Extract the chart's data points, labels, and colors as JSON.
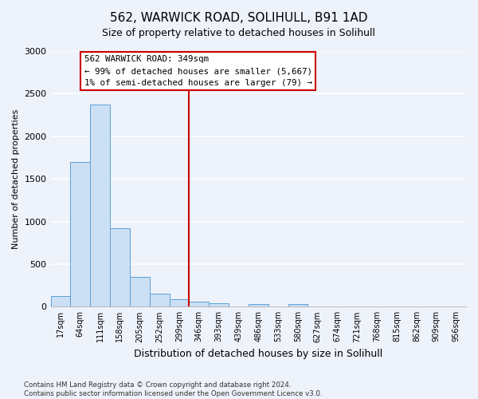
{
  "title": "562, WARWICK ROAD, SOLIHULL, B91 1AD",
  "subtitle": "Size of property relative to detached houses in Solihull",
  "xlabel": "Distribution of detached houses by size in Solihull",
  "ylabel": "Number of detached properties",
  "bar_labels": [
    "17sqm",
    "64sqm",
    "111sqm",
    "158sqm",
    "205sqm",
    "252sqm",
    "299sqm",
    "346sqm",
    "393sqm",
    "439sqm",
    "486sqm",
    "533sqm",
    "580sqm",
    "627sqm",
    "674sqm",
    "721sqm",
    "768sqm",
    "815sqm",
    "862sqm",
    "909sqm",
    "956sqm"
  ],
  "bar_values": [
    120,
    1700,
    2370,
    920,
    350,
    155,
    85,
    55,
    40,
    5,
    30,
    5,
    30,
    0,
    0,
    0,
    0,
    0,
    0,
    0,
    0
  ],
  "bar_color": "#cce0f5",
  "bar_edge_color": "#5a9fd4",
  "ylim": [
    0,
    3000
  ],
  "yticks": [
    0,
    500,
    1000,
    1500,
    2000,
    2500,
    3000
  ],
  "vline_color": "#cc0000",
  "annotation_title": "562 WARWICK ROAD: 349sqm",
  "annotation_line1": "← 99% of detached houses are smaller (5,667)",
  "annotation_line2": "1% of semi-detached houses are larger (79) →",
  "background_color": "#edf2fb",
  "grid_color": "#ffffff",
  "footer_line1": "Contains HM Land Registry data © Crown copyright and database right 2024.",
  "footer_line2": "Contains public sector information licensed under the Open Government Licence v3.0."
}
